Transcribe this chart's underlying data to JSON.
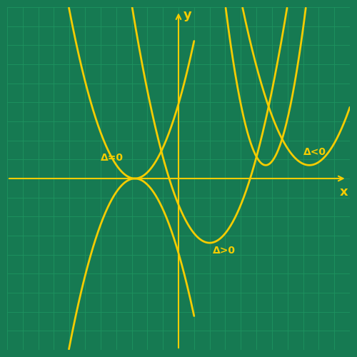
{
  "bg_color": "#167a52",
  "grid_color": "#1e9460",
  "curve_color": "#f5cc00",
  "axis_color": "#f5cc00",
  "text_color": "#f5cc00",
  "xlim": [
    -5.5,
    5.5
  ],
  "ylim": [
    -4.5,
    4.5
  ],
  "labels": {
    "delta_eq0": "Δ=0",
    "delta_gt0": "Δ>0",
    "delta_lt0": "Δ<0",
    "x_label": "x",
    "y_label": "y"
  },
  "label_positions": {
    "delta_eq0": [
      -2.5,
      0.55
    ],
    "delta_gt0": [
      1.1,
      -1.9
    ],
    "delta_lt0": [
      4.0,
      0.7
    ]
  },
  "curves": {
    "delta0_up": {
      "vertex_x": -1.4,
      "vertex_y": 0.0,
      "a": 1.0
    },
    "delta0_down": {
      "vertex_x": -1.4,
      "vertex_y": 0.0,
      "a": -1.0
    },
    "delta_pos": {
      "root1": -0.3,
      "root2": 2.3,
      "a": 1.0
    },
    "delta_neg_narrow": {
      "vertex_x": 2.8,
      "vertex_y": 0.35,
      "a": 2.5
    },
    "delta_neg_wide": {
      "vertex_x": 4.2,
      "vertex_y": 0.35,
      "a": 0.9
    }
  }
}
